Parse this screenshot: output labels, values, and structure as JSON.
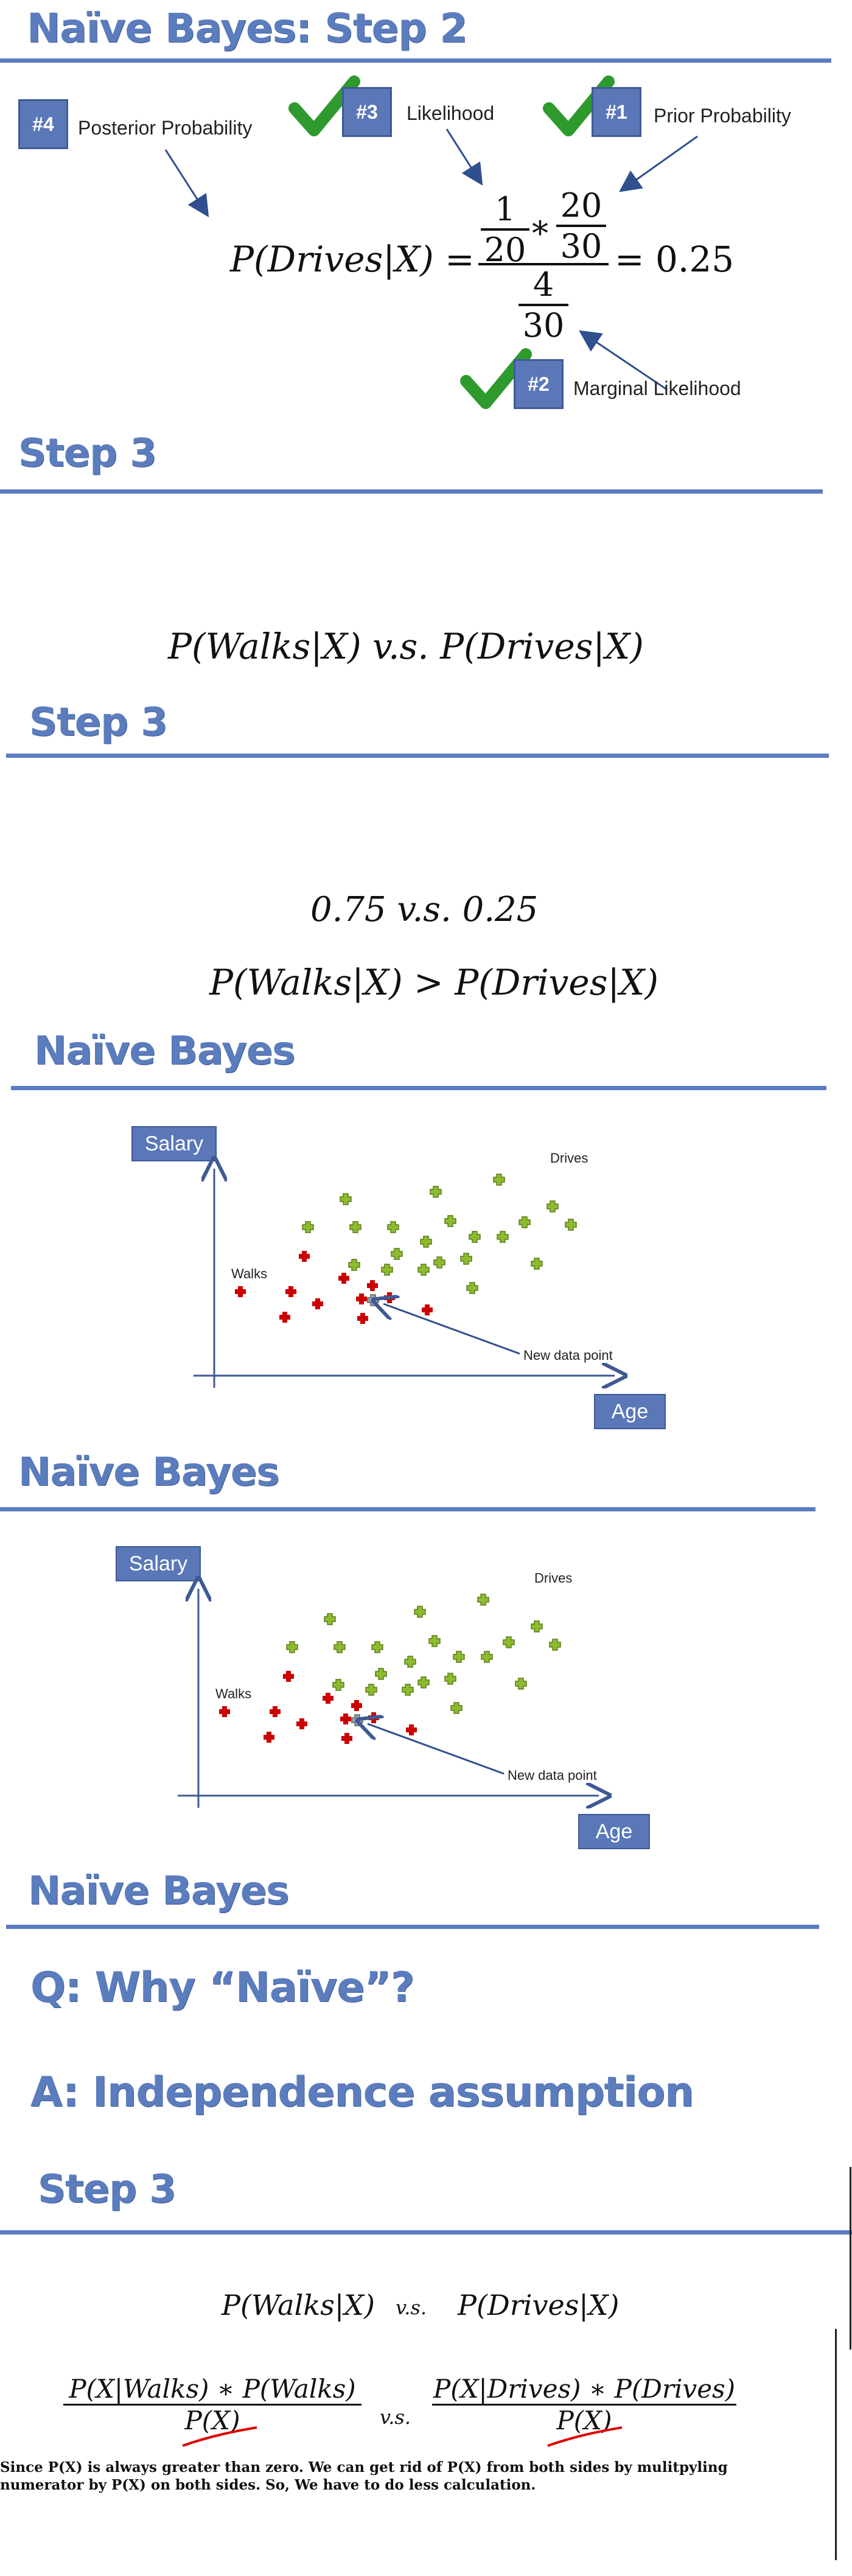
{
  "slide1": {
    "title": "Naïve Bayes: Step 2",
    "badge4": "#4",
    "badge3": "#3",
    "badge1": "#1",
    "badge2": "#2",
    "posterior_label": "Posterior Probability",
    "likelihood_label": "Likelihood",
    "prior_label": "Prior Probability",
    "marginal_label": "Marginal Likelihood",
    "lhs": "P(Drives|X) =",
    "num1": "1",
    "den1": "20",
    "star": "*",
    "num2": "20",
    "den2": "30",
    "num3": "4",
    "den3": "30",
    "result": "= 0.25"
  },
  "slide2": {
    "title": "Step 3",
    "expr": "P(Walks|X) v.s. P(Drives|X)"
  },
  "slide3": {
    "title": "Step 3",
    "values": "0.75 v.s. 0.25",
    "inequality": "P(Walks|X) > P(Drives|X)"
  },
  "slide4": {
    "title": "Naïve Bayes",
    "y_axis": "Salary",
    "x_axis": "Age",
    "drives": "Drives",
    "walks": "Walks",
    "new_point": "New data point"
  },
  "slide5": {
    "title": "Naïve Bayes",
    "y_axis": "Salary",
    "x_axis": "Age",
    "drives": "Drives",
    "walks": "Walks",
    "new_point": "New data point"
  },
  "slide6": {
    "title": "Naïve Bayes",
    "question": "Q: Why “Naïve”?",
    "answer": "A: Independence assumption"
  },
  "slide7": {
    "title": "Step 3",
    "expr_left": "P(Walks|X)",
    "vs": "v.s.",
    "expr_right": "P(Drives|X)",
    "frac_left_num": "P(X|Walks) ∗ P(Walks)",
    "frac_left_den": "P(X)",
    "frac_right_num": "P(X|Drives) ∗ P(Drives)",
    "frac_right_den": "P(X)",
    "note": "Since P(X) is always greater than zero. We can get rid of P(X) from both sides by mulitpyling numerator by P(X) on both sides. So, We have to do less calculation."
  },
  "colors": {
    "heading": "#5b7dbe",
    "rule": "#5a7cc2",
    "badge": "#5a78b8",
    "check": "#2e9a2e",
    "walks_marker": "#cc0000",
    "drives_marker": "#8dbb2e",
    "strike": "#dd0000"
  }
}
